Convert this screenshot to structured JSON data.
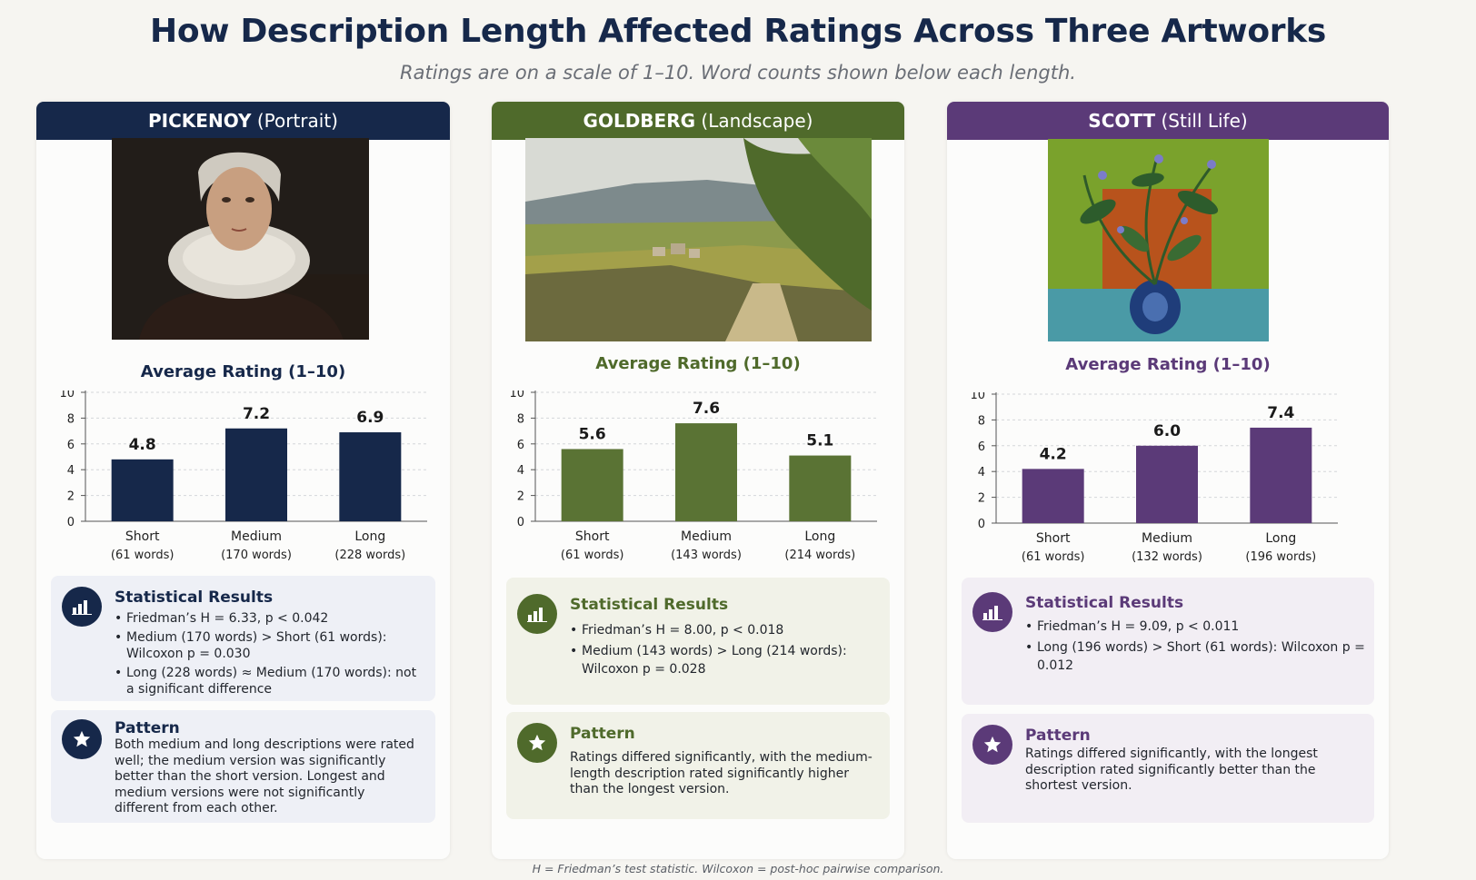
{
  "title": "How Description Length Affected Ratings Across Three Artworks",
  "subtitle": "Ratings are on a scale of 1–10. Word counts shown below each length.",
  "footnote": "H = Friedman’s test statistic. Wilcoxon = post-hoc pairwise comparison.",
  "panels": [
    {
      "artist": "PICKENOY",
      "genre": "(Portrait)",
      "color": "#16284a",
      "box_bg": "#eef0f6",
      "chart_title": "Average Rating (1–10)",
      "stats_title": "Statistical Results",
      "stats": [
        "Friedman’s H = 6.33, p < 0.042",
        "Medium (170 words) > Short (61 words): Wilcoxon p = 0.030",
        "Long (228 words) ≈ Medium (170 words): not a significant difference"
      ],
      "pattern_title": "Pattern",
      "pattern_text": "Both medium and long descriptions were rated well; the medium version was significantly better than the short version. Longest and medium versions were not significantly different from each other."
    },
    {
      "artist": "GOLDBERG",
      "genre": "(Landscape)",
      "color": "#4f6a2b",
      "box_bg": "#f1f2e8",
      "chart_title": "Average Rating (1–10)",
      "stats_title": "Statistical Results",
      "stats": [
        "Friedman’s H = 8.00, p < 0.018",
        "Medium (143 words) > Long (214 words): Wilcoxon p = 0.028"
      ],
      "pattern_title": "Pattern",
      "pattern_text": "Ratings differed significantly, with the medium-length description rated significantly higher than the longest version."
    },
    {
      "artist": "SCOTT",
      "genre": "(Still Life)",
      "color": "#5b3a78",
      "box_bg": "#f2eef4",
      "chart_title": "Average Rating (1–10)",
      "stats_title": "Statistical Results",
      "stats": [
        "Friedman’s H = 9.09, p < 0.011",
        "Long (196 words) > Short (61 words): Wilcoxon p = 0.012"
      ],
      "pattern_title": "Pattern",
      "pattern_text": "Ratings differed significantly, with the longest description rated significantly better than the shortest version."
    }
  ],
  "chart_data": [
    {
      "type": "bar",
      "title": "Average Rating (1–10)",
      "categories": [
        "Short",
        "Medium",
        "Long"
      ],
      "category_sublabels": [
        "(61 words)",
        "(170 words)",
        "(228 words)"
      ],
      "values": [
        4.8,
        7.2,
        6.9
      ],
      "value_labels": [
        "4.8",
        "7.2",
        "6.9"
      ],
      "ylim": [
        0,
        10
      ],
      "yticks": [
        0,
        2,
        4,
        6,
        8,
        10
      ],
      "grid": true,
      "color": "#16284a"
    },
    {
      "type": "bar",
      "title": "Average Rating (1–10)",
      "categories": [
        "Short",
        "Medium",
        "Long"
      ],
      "category_sublabels": [
        "(61 words)",
        "(143 words)",
        "(214 words)"
      ],
      "values": [
        5.6,
        7.6,
        5.1
      ],
      "value_labels": [
        "5.6",
        "7.6",
        "5.1"
      ],
      "ylim": [
        0,
        10
      ],
      "yticks": [
        0,
        2,
        4,
        6,
        8,
        10
      ],
      "grid": true,
      "color": "#5a7334"
    },
    {
      "type": "bar",
      "title": "Average Rating (1–10)",
      "categories": [
        "Short",
        "Medium",
        "Long"
      ],
      "category_sublabels": [
        "(61 words)",
        "(132 words)",
        "(196 words)"
      ],
      "values": [
        4.2,
        6.0,
        7.4
      ],
      "value_labels": [
        "4.2",
        "6.0",
        "7.4"
      ],
      "ylim": [
        0,
        10
      ],
      "yticks": [
        0,
        2,
        4,
        6,
        8,
        10
      ],
      "grid": true,
      "color": "#5b3a78"
    }
  ]
}
